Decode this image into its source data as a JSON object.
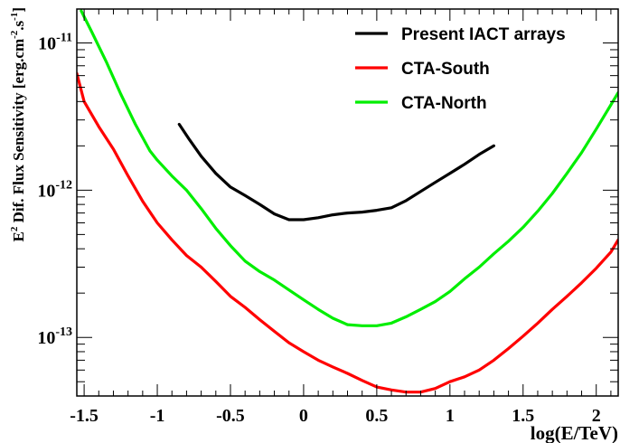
{
  "chart_data": {
    "type": "line",
    "xlabel": "log(E/TeV)",
    "ylabel_main": "E",
    "ylabel_sup1": "2",
    "ylabel_rest": " Dif. Flux Sensitivity [erg.cm",
    "ylabel_sup2": "-2",
    "ylabel_mid": ".s",
    "ylabel_sup3": "-1",
    "ylabel_end": "]",
    "x_scale": "linear",
    "y_scale": "log",
    "xlim": [
      -1.55,
      2.15
    ],
    "ylim": [
      4e-14,
      1.7e-11
    ],
    "grid": false,
    "legend_position": "top-right",
    "x_ticks": [
      {
        "value": -1.5,
        "label": "-1.5"
      },
      {
        "value": -1.0,
        "label": "-1"
      },
      {
        "value": -0.5,
        "label": "-0.5"
      },
      {
        "value": 0.0,
        "label": "0"
      },
      {
        "value": 0.5,
        "label": "0.5"
      },
      {
        "value": 1.0,
        "label": "1"
      },
      {
        "value": 1.5,
        "label": "1.5"
      },
      {
        "value": 2.0,
        "label": "2"
      }
    ],
    "y_ticks": [
      {
        "value": 1e-13,
        "base": "10",
        "exp": "-13"
      },
      {
        "value": 1e-12,
        "base": "10",
        "exp": "-12"
      },
      {
        "value": 1e-11,
        "base": "10",
        "exp": "-11"
      }
    ],
    "series": [
      {
        "name": "Present IACT arrays",
        "color": "#000000",
        "x": [
          -0.85,
          -0.78,
          -0.7,
          -0.6,
          -0.5,
          -0.4,
          -0.3,
          -0.2,
          -0.1,
          0.0,
          0.1,
          0.2,
          0.3,
          0.4,
          0.5,
          0.6,
          0.7,
          0.8,
          0.9,
          1.0,
          1.1,
          1.2,
          1.3
        ],
        "y": [
          2.8e-12,
          2.2e-12,
          1.7e-12,
          1.3e-12,
          1.05e-12,
          9.2e-13,
          8e-13,
          6.9e-13,
          6.3e-13,
          6.3e-13,
          6.5e-13,
          6.8e-13,
          7e-13,
          7.1e-13,
          7.3e-13,
          7.6e-13,
          8.5e-13,
          9.8e-13,
          1.13e-12,
          1.3e-12,
          1.5e-12,
          1.75e-12,
          2e-12
        ]
      },
      {
        "name": "CTA-South",
        "color": "#ff0000",
        "x": [
          -1.55,
          -1.5,
          -1.4,
          -1.3,
          -1.2,
          -1.1,
          -1.0,
          -0.9,
          -0.8,
          -0.7,
          -0.6,
          -0.5,
          -0.4,
          -0.3,
          -0.2,
          -0.1,
          0.0,
          0.1,
          0.2,
          0.3,
          0.4,
          0.5,
          0.6,
          0.7,
          0.8,
          0.9,
          1.0,
          1.1,
          1.2,
          1.3,
          1.4,
          1.5,
          1.6,
          1.7,
          1.8,
          1.9,
          2.0,
          2.1,
          2.15
        ],
        "y": [
          6.2e-12,
          4e-12,
          2.7e-12,
          1.9e-12,
          1.25e-12,
          8.4e-13,
          6e-13,
          4.6e-13,
          3.6e-13,
          3e-13,
          2.4e-13,
          1.9e-13,
          1.6e-13,
          1.32e-13,
          1.1e-13,
          9.2e-14,
          8e-14,
          7e-14,
          6.3e-14,
          5.7e-14,
          5.1e-14,
          4.6e-14,
          4.4e-14,
          4.25e-14,
          4.25e-14,
          4.5e-14,
          5e-14,
          5.4e-14,
          6e-14,
          7e-14,
          8.4e-14,
          1.02e-13,
          1.25e-13,
          1.55e-13,
          1.9e-13,
          2.35e-13,
          2.95e-13,
          3.8e-13,
          4.6e-13
        ]
      },
      {
        "name": "CTA-North",
        "color": "#00ee00",
        "x": [
          -1.52,
          -1.45,
          -1.35,
          -1.25,
          -1.15,
          -1.05,
          -1.0,
          -0.9,
          -0.8,
          -0.7,
          -0.6,
          -0.5,
          -0.4,
          -0.3,
          -0.2,
          -0.1,
          0.0,
          0.1,
          0.2,
          0.3,
          0.4,
          0.5,
          0.6,
          0.7,
          0.8,
          0.9,
          1.0,
          1.1,
          1.2,
          1.3,
          1.4,
          1.5,
          1.6,
          1.7,
          1.8,
          1.9,
          2.0,
          2.1,
          2.15
        ],
        "y": [
          1.65e-11,
          1.2e-11,
          7.5e-12,
          4.5e-12,
          2.8e-12,
          1.85e-12,
          1.6e-12,
          1.25e-12,
          1e-12,
          7.5e-13,
          5.5e-13,
          4.2e-13,
          3.3e-13,
          2.8e-13,
          2.45e-13,
          2.1e-13,
          1.8e-13,
          1.55e-13,
          1.35e-13,
          1.22e-13,
          1.2e-13,
          1.2e-13,
          1.25e-13,
          1.38e-13,
          1.55e-13,
          1.75e-13,
          2.05e-13,
          2.5e-13,
          3e-13,
          3.7e-13,
          4.5e-13,
          5.6e-13,
          7.2e-13,
          9.5e-13,
          1.3e-12,
          1.8e-12,
          2.6e-12,
          3.8e-12,
          4.6e-12
        ]
      }
    ]
  }
}
